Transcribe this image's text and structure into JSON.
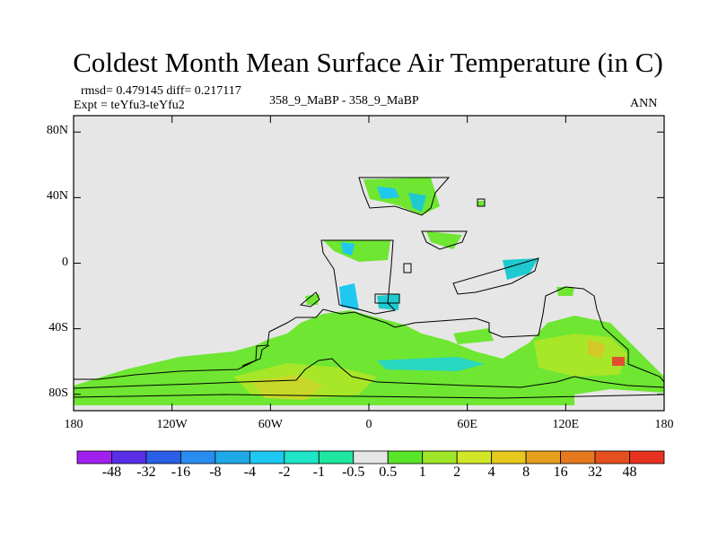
{
  "chart_data": {
    "type": "heatmap",
    "title": "Coldest Month Mean Surface Air Temperature (in C)",
    "stats": "rmsd= 0.479145 diff= 0.217117",
    "expt": "Expt = teYfu3-teYfu2",
    "subtitle": "358_9_MaBP - 358_9_MaBP",
    "season": "ANN",
    "x_ticks": [
      "180",
      "120W",
      "60W",
      "0",
      "60E",
      "120E",
      "180"
    ],
    "y_ticks": [
      "80N",
      "40N",
      "0",
      "40S",
      "80S"
    ],
    "xlim": [
      -180,
      180
    ],
    "ylim": [
      -90,
      90
    ],
    "colorbar_labels": [
      "-48",
      "-32",
      "-16",
      "-8",
      "-4",
      "-2",
      "-1",
      "-0.5",
      "0.5",
      "1",
      "2",
      "4",
      "8",
      "16",
      "32",
      "48"
    ],
    "colorbar_colors": [
      "#a020f0",
      "#5a2ee6",
      "#2a5ee6",
      "#2a8cf0",
      "#1eaae6",
      "#1ec8f0",
      "#1ee6c8",
      "#1ee6a0",
      "#e6e6e6",
      "#5ae628",
      "#a0e628",
      "#d2e628",
      "#e6c81e",
      "#e6a01e",
      "#e6781e",
      "#e6501e",
      "#e6321e"
    ],
    "background_value_color": "#e6e6e6"
  }
}
